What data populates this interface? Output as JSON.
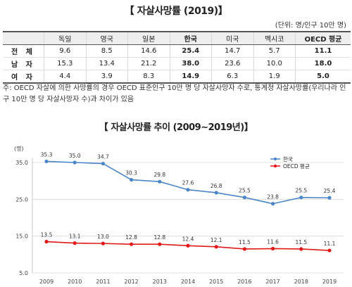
{
  "title": "【 자살사망률 (2019)】",
  "unit_note": "(단위: 명/인구 10만 명)",
  "table": {
    "headers": [
      "",
      "독일",
      "영국",
      "일본",
      "한국",
      "미국",
      "멕시코",
      "OECD 평균"
    ],
    "rows": [
      {
        "label": "전 체",
        "values": [
          "9.6",
          "8.5",
          "14.6",
          "25.4",
          "14.7",
          "5.7",
          "11.1"
        ]
      },
      {
        "label": "남 자",
        "values": [
          "15.3",
          "13.4",
          "21.2",
          "38.0",
          "23.6",
          "10.0",
          "18.0"
        ]
      },
      {
        "label": "여 자",
        "values": [
          "4.4",
          "3.9",
          "8.3",
          "14.9",
          "6.3",
          "1.9",
          "5.0"
        ]
      }
    ]
  },
  "footnote": "주: OECD 자살에 의한 사망률의 경우 OECD 표준인구 10만 명 당 자살사망자 수로, 통계청 자살사망률(우리나라 인구 10만 명 당 자살사망자 수)과 차이가 있음",
  "chart_title": "【 자살사망률 추이 (2009∼2019년)】",
  "colors": {
    "korea": "#4a86c8",
    "oecd": "#e01818",
    "grid": "#d9d9d9"
  },
  "chart_data": {
    "type": "line",
    "title": "자살사망률 추이 (2009∼2019년)",
    "y_unit": "(명)",
    "x": [
      "2009",
      "2010",
      "2011",
      "2012",
      "2013",
      "2014",
      "2015",
      "2016",
      "2017",
      "2018",
      "2019"
    ],
    "y_ticks": [
      "35.0",
      "25.0",
      "15.0",
      "5.0"
    ],
    "ylim": [
      5,
      35
    ],
    "grid": "horizontal",
    "legend_position": "top-right",
    "series": [
      {
        "name": "한국",
        "values": [
          35.3,
          35.0,
          34.7,
          30.3,
          29.8,
          27.6,
          26.8,
          25.5,
          23.8,
          25.5,
          25.4
        ],
        "labels": [
          "35.3",
          "35.0",
          "34.7",
          "30.3",
          "29.8",
          "27.6",
          "26.8",
          "25.5",
          "23.8",
          "25.5",
          "25.4"
        ]
      },
      {
        "name": "OECD 평균",
        "values": [
          13.5,
          13.1,
          13.0,
          12.8,
          12.8,
          12.4,
          12.1,
          11.5,
          11.6,
          11.5,
          11.1
        ],
        "labels": [
          "13.5",
          "13.1",
          "13.0",
          "12.8",
          "12.8",
          "12.4",
          "12.1",
          "11.5",
          "11.6",
          "11.5",
          "11.1"
        ]
      }
    ]
  }
}
